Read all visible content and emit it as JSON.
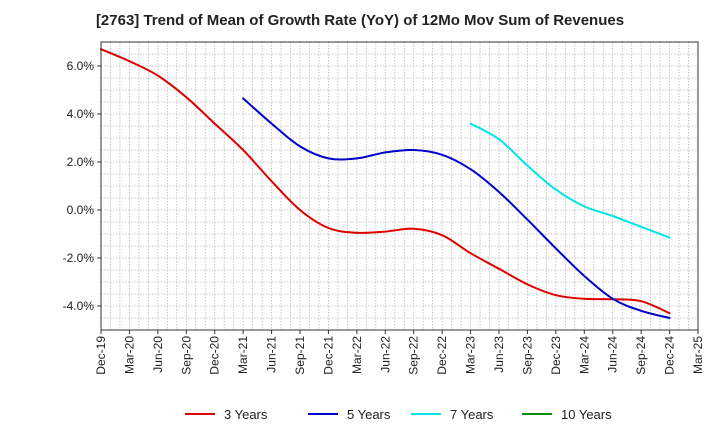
{
  "chart_data": {
    "type": "line",
    "title": "[2763]  Trend of Mean of Growth Rate (YoY) of 12Mo Mov Sum of Revenues",
    "xlabel": "",
    "ylabel": "",
    "ylim": [
      -5.0,
      7.0
    ],
    "grid": true,
    "legend_position": "bottom",
    "x_ticks": [
      "Dec-19",
      "Mar-20",
      "Jun-20",
      "Sep-20",
      "Dec-20",
      "Mar-21",
      "Jun-21",
      "Sep-21",
      "Dec-21",
      "Mar-22",
      "Jun-22",
      "Sep-22",
      "Dec-22",
      "Mar-23",
      "Jun-23",
      "Sep-23",
      "Dec-23",
      "Mar-24",
      "Jun-24",
      "Sep-24",
      "Dec-24",
      "Mar-25"
    ],
    "y_ticks": [
      {
        "value": 6,
        "label": "6.0%"
      },
      {
        "value": 4,
        "label": "4.0%"
      },
      {
        "value": 2,
        "label": "2.0%"
      },
      {
        "value": 0,
        "label": "0.0%"
      },
      {
        "value": -2,
        "label": "-2.0%"
      },
      {
        "value": -4,
        "label": "-4.0%"
      }
    ],
    "series": [
      {
        "name": "3 Years",
        "color": "#dd0000",
        "points": [
          {
            "t": "Dec-19",
            "y": 6.7
          },
          {
            "t": "Mar-20",
            "y": 6.2
          },
          {
            "t": "Jun-20",
            "y": 5.6
          },
          {
            "t": "Sep-20",
            "y": 4.7
          },
          {
            "t": "Dec-20",
            "y": 3.6
          },
          {
            "t": "Mar-21",
            "y": 2.5
          },
          {
            "t": "Jun-21",
            "y": 1.2
          },
          {
            "t": "Sep-21",
            "y": 0.0
          },
          {
            "t": "Dec-21",
            "y": -0.75
          },
          {
            "t": "Mar-22",
            "y": -0.95
          },
          {
            "t": "Jun-22",
            "y": -0.9
          },
          {
            "t": "Sep-22",
            "y": -0.78
          },
          {
            "t": "Dec-22",
            "y": -1.05
          },
          {
            "t": "Mar-23",
            "y": -1.8
          },
          {
            "t": "Jun-23",
            "y": -2.45
          },
          {
            "t": "Sep-23",
            "y": -3.1
          },
          {
            "t": "Dec-23",
            "y": -3.55
          },
          {
            "t": "Mar-24",
            "y": -3.7
          },
          {
            "t": "Jun-24",
            "y": -3.72
          },
          {
            "t": "Sep-24",
            "y": -3.8
          },
          {
            "t": "Dec-24",
            "y": -4.3
          }
        ]
      },
      {
        "name": "5 Years",
        "color": "#0000cc",
        "points": [
          {
            "t": "Mar-21",
            "y": 4.65
          },
          {
            "t": "Jun-21",
            "y": 3.6
          },
          {
            "t": "Sep-21",
            "y": 2.65
          },
          {
            "t": "Dec-21",
            "y": 2.15
          },
          {
            "t": "Mar-22",
            "y": 2.15
          },
          {
            "t": "Jun-22",
            "y": 2.4
          },
          {
            "t": "Sep-22",
            "y": 2.5
          },
          {
            "t": "Dec-22",
            "y": 2.3
          },
          {
            "t": "Mar-23",
            "y": 1.7
          },
          {
            "t": "Jun-23",
            "y": 0.75
          },
          {
            "t": "Sep-23",
            "y": -0.4
          },
          {
            "t": "Dec-23",
            "y": -1.6
          },
          {
            "t": "Mar-24",
            "y": -2.75
          },
          {
            "t": "Jun-24",
            "y": -3.7
          },
          {
            "t": "Sep-24",
            "y": -4.2
          },
          {
            "t": "Dec-24",
            "y": -4.5
          }
        ]
      },
      {
        "name": "7 Years",
        "color": "#00e5e5",
        "points": [
          {
            "t": "Mar-23",
            "y": 3.6
          },
          {
            "t": "Jun-23",
            "y": 2.95
          },
          {
            "t": "Sep-23",
            "y": 1.85
          },
          {
            "t": "Dec-23",
            "y": 0.85
          },
          {
            "t": "Mar-24",
            "y": 0.15
          },
          {
            "t": "Jun-24",
            "y": -0.25
          },
          {
            "t": "Sep-24",
            "y": -0.7
          },
          {
            "t": "Dec-24",
            "y": -1.15
          }
        ]
      },
      {
        "name": "10 Years",
        "color": "#118811",
        "points": []
      }
    ]
  }
}
